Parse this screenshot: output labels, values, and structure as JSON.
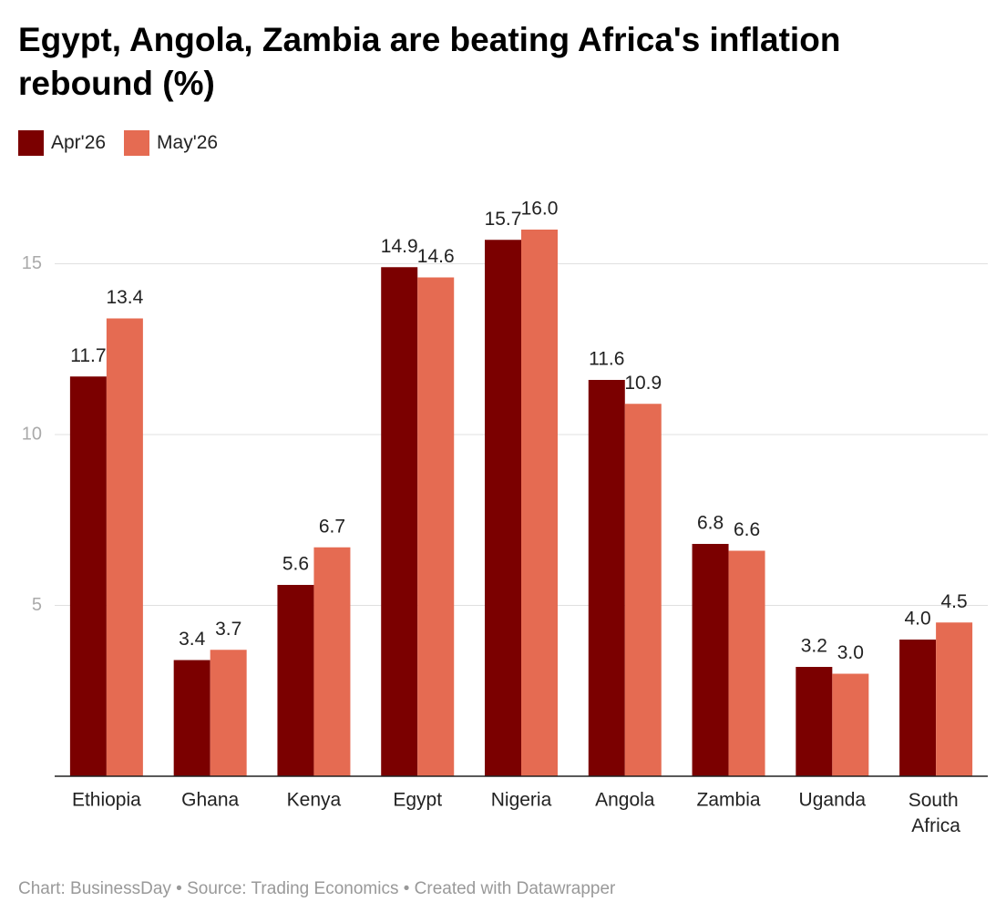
{
  "chart_data": {
    "type": "bar",
    "title": "Egypt, Angola, Zambia are beating Africa's inflation rebound (%)",
    "footer": "Chart: BusinessDay • Source: Trading Economics • Created with Datawrapper",
    "categories": [
      "Ethiopia",
      "Ghana",
      "Kenya",
      "Egypt",
      "Nigeria",
      "Angola",
      "Zambia",
      "Uganda",
      "South Africa"
    ],
    "series": [
      {
        "name": "Apr'26",
        "color": "#7b0000",
        "values": [
          11.7,
          3.4,
          5.6,
          14.9,
          15.7,
          11.6,
          6.8,
          3.2,
          4.0
        ],
        "value_labels": [
          "11.7",
          "3.4",
          "5.6",
          "14.9",
          "15.7",
          "11.6",
          "6.8",
          "3.2",
          "4.0"
        ]
      },
      {
        "name": "May'26",
        "color": "#e56b52",
        "values": [
          13.4,
          3.7,
          6.7,
          14.6,
          16.0,
          10.9,
          6.6,
          3.0,
          4.5
        ],
        "value_labels": [
          "13.4",
          "3.7",
          "6.7",
          "14.6",
          "16.0",
          "10.9",
          "6.6",
          "3.0",
          "4.5"
        ]
      }
    ],
    "ylim": [
      0,
      16
    ],
    "yticks": [
      5,
      10,
      15
    ],
    "grid": true
  }
}
